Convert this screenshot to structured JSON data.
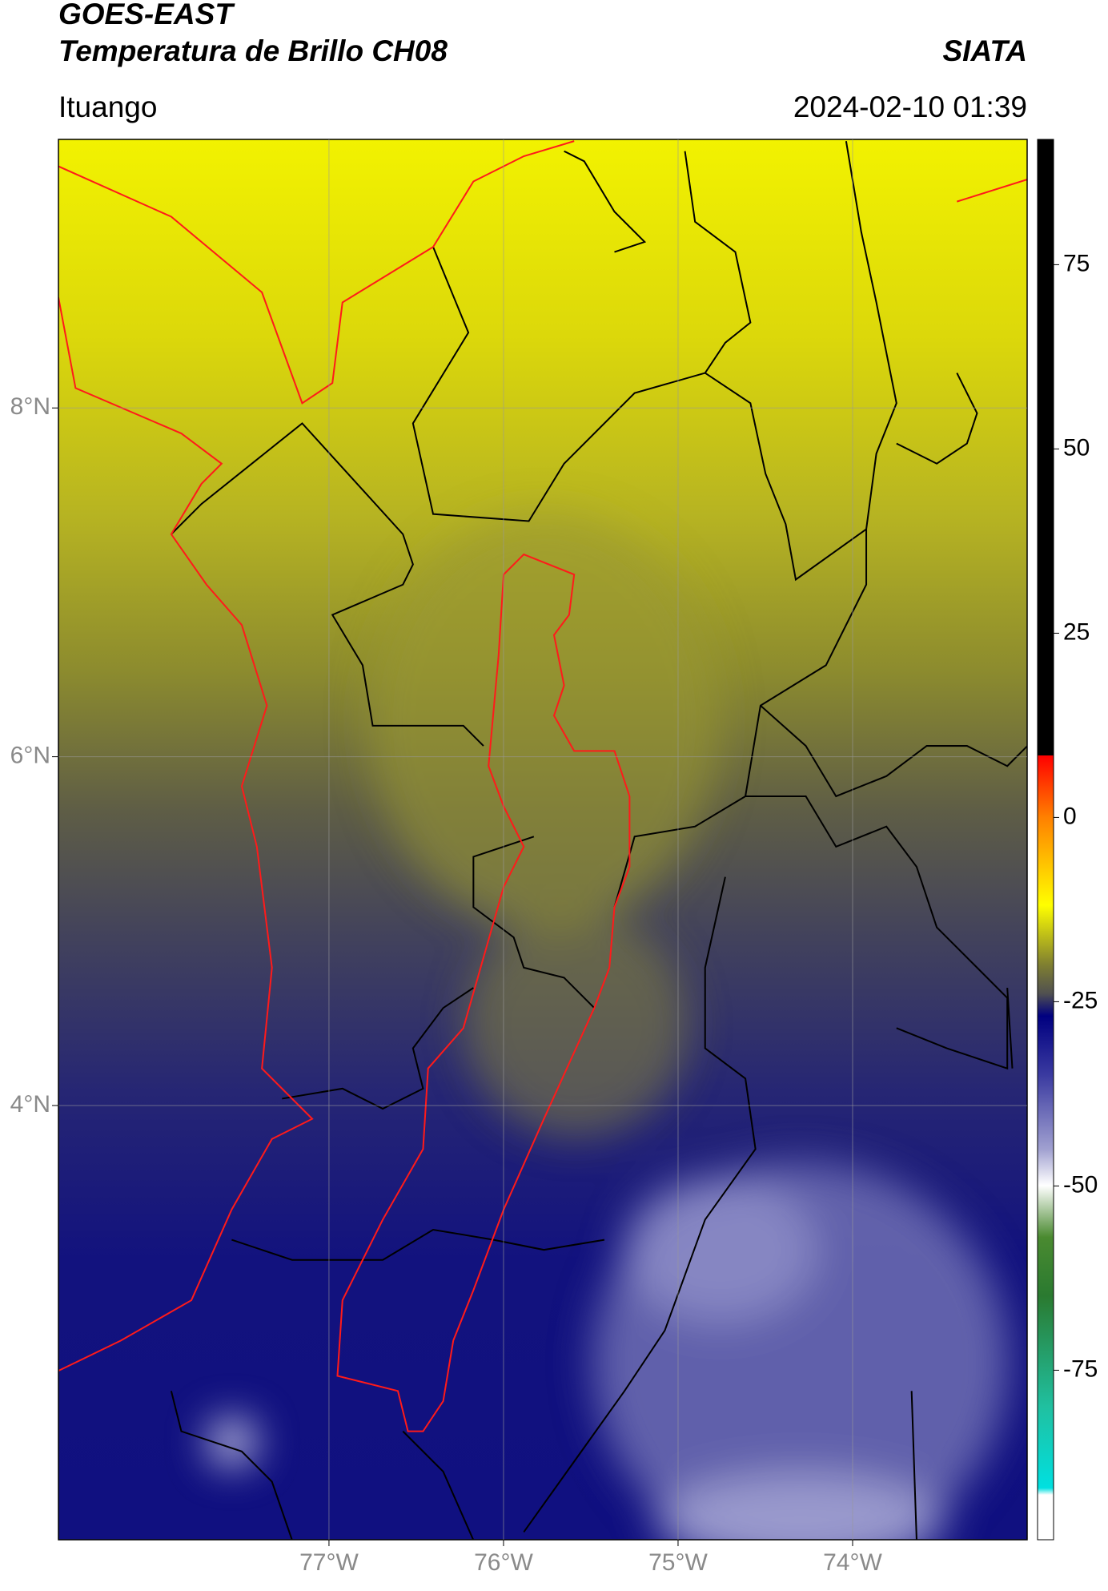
{
  "header": {
    "title": "GOES-EAST",
    "subtitle": "Temperatura de Brillo CH08",
    "source": "SIATA",
    "location": "Ituango",
    "datetime": "2024-02-10 01:39"
  },
  "map": {
    "xlim": [
      -78.55,
      -73
    ],
    "ylim": [
      1.51,
      9.54
    ],
    "xticks": [
      {
        "value": -77,
        "label": "77°W"
      },
      {
        "value": -76,
        "label": "76°W"
      },
      {
        "value": -75,
        "label": "75°W"
      },
      {
        "value": -74,
        "label": "74°W"
      }
    ],
    "yticks": [
      {
        "value": 4,
        "label": "4°N"
      },
      {
        "value": 6,
        "label": "6°N"
      },
      {
        "value": 8,
        "label": "8°N"
      }
    ]
  },
  "colorbar": {
    "lim": [
      -98,
      92
    ],
    "ticks": [
      -75,
      -50,
      -25,
      0,
      25,
      50,
      75
    ]
  }
}
